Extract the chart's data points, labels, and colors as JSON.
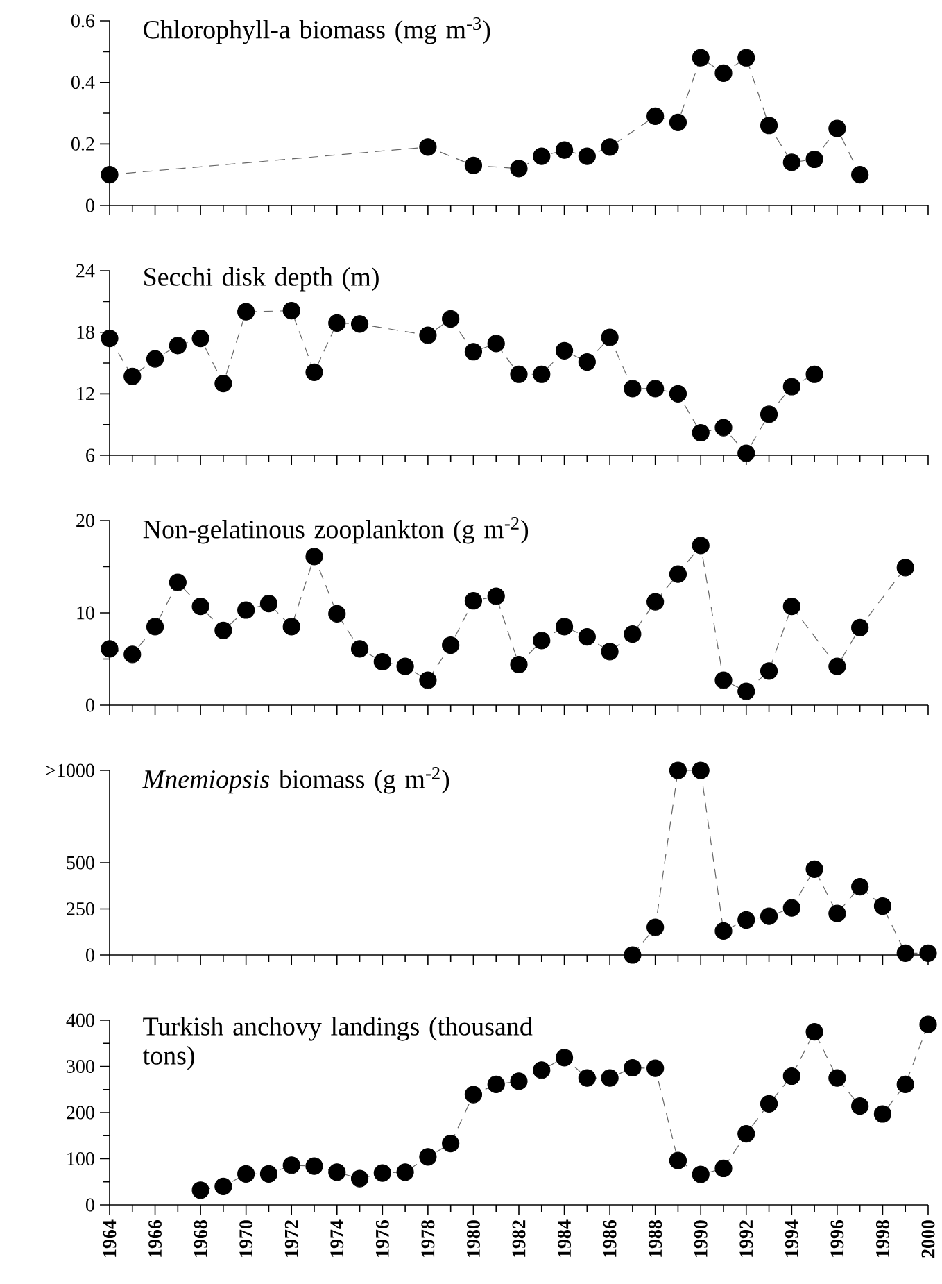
{
  "chart_data": [
    {
      "type": "line",
      "title": "Chlorophyll-a biomass (mg m$^{-3}$)",
      "color": "#000000",
      "marker": "circle",
      "line_style": "dashed",
      "tick_labels": "y",
      "x": [
        1964,
        1978,
        1980,
        1982,
        1983,
        1984,
        1985,
        1986,
        1988,
        1989,
        1990,
        1991,
        1992,
        1993,
        1994,
        1995,
        1996,
        1997
      ],
      "values": [
        0.1,
        0.19,
        0.13,
        0.12,
        0.16,
        0.18,
        0.16,
        0.19,
        0.29,
        0.27,
        0.48,
        0.43,
        0.48,
        0.26,
        0.14,
        0.15,
        0.25,
        0.1
      ],
      "xlim": [
        1964,
        2000
      ],
      "xticks": [
        1964,
        1966,
        1968,
        1970,
        1972,
        1974,
        1976,
        1978,
        1980,
        1982,
        1984,
        1986,
        1988,
        1990,
        1992,
        1994,
        1996,
        1998,
        2000
      ],
      "ylim": [
        0,
        0.6
      ],
      "yticks": [
        0,
        0.2,
        0.4,
        0.6
      ]
    },
    {
      "type": "line",
      "title": "Secchi disk depth (m)",
      "color": "#000000",
      "marker": "circle",
      "line_style": "dashed",
      "tick_labels": "y",
      "x": [
        1964,
        1965,
        1966,
        1967,
        1968,
        1969,
        1970,
        1972,
        1973,
        1974,
        1975,
        1978,
        1979,
        1980,
        1981,
        1982,
        1983,
        1984,
        1985,
        1986,
        1987,
        1988,
        1989,
        1990,
        1991,
        1992,
        1993,
        1994,
        1995
      ],
      "values": [
        17.4,
        13.7,
        15.4,
        16.7,
        17.4,
        13.0,
        20.0,
        20.1,
        14.1,
        18.9,
        18.8,
        17.7,
        19.3,
        16.1,
        16.9,
        13.9,
        13.9,
        16.2,
        15.1,
        17.5,
        12.5,
        12.5,
        12.0,
        8.2,
        8.7,
        6.2,
        10.0,
        12.7,
        13.9
      ],
      "xlim": [
        1964,
        2000
      ],
      "xticks": [
        1964,
        1966,
        1968,
        1970,
        1972,
        1974,
        1976,
        1978,
        1980,
        1982,
        1984,
        1986,
        1988,
        1990,
        1992,
        1994,
        1996,
        1998,
        2000
      ],
      "ylim": [
        6,
        24
      ],
      "yticks": [
        6,
        12,
        18,
        24
      ]
    },
    {
      "type": "line",
      "title": "Non-gelatinous zooplankton (g m$^{-2}$)",
      "color": "#000000",
      "marker": "circle",
      "line_style": "dashed",
      "tick_labels": "y",
      "x": [
        1964,
        1965,
        1966,
        1967,
        1968,
        1969,
        1970,
        1971,
        1972,
        1973,
        1974,
        1975,
        1976,
        1977,
        1978,
        1979,
        1980,
        1981,
        1982,
        1983,
        1984,
        1985,
        1986,
        1987,
        1988,
        1989,
        1990,
        1991,
        1992,
        1993,
        1994,
        1996,
        1997,
        1999
      ],
      "values": [
        6.1,
        5.5,
        8.5,
        13.3,
        10.7,
        8.1,
        10.3,
        11.0,
        8.5,
        16.1,
        9.9,
        6.1,
        4.7,
        4.2,
        2.7,
        6.5,
        11.3,
        11.8,
        4.4,
        7.0,
        8.5,
        7.4,
        5.8,
        7.7,
        11.2,
        14.2,
        17.3,
        2.7,
        1.5,
        3.7,
        10.7,
        4.2,
        8.4,
        14.9
      ],
      "xlim": [
        1964,
        2000
      ],
      "xticks": [
        1964,
        1966,
        1968,
        1970,
        1972,
        1974,
        1976,
        1978,
        1980,
        1982,
        1984,
        1986,
        1988,
        1990,
        1992,
        1994,
        1996,
        1998,
        2000
      ],
      "ylim": [
        0,
        20
      ],
      "yticks": [
        0,
        10,
        20
      ]
    },
    {
      "type": "line",
      "title": "*Mnemiopsis* biomass (g m$^{-2}$)",
      "color": "#000000",
      "marker": "circle",
      "line_style": "dashed",
      "tick_labels": "y",
      "x": [
        1987,
        1988,
        1989,
        1990,
        1991,
        1992,
        1993,
        1994,
        1995,
        1996,
        1997,
        1998,
        1999,
        2000
      ],
      "values": [
        0,
        150,
        1000,
        1000,
        130,
        190,
        210,
        255,
        465,
        225,
        370,
        265,
        10,
        10
      ],
      "xlim": [
        1964,
        2000
      ],
      "xticks": [
        1964,
        1966,
        1968,
        1970,
        1972,
        1974,
        1976,
        1978,
        1980,
        1982,
        1984,
        1986,
        1988,
        1990,
        1992,
        1994,
        1996,
        1998,
        2000
      ],
      "ylim": [
        0,
        1000
      ],
      "yticks": [
        0,
        250,
        500,
        {
          "value": 1000,
          "label": ">1000"
        }
      ]
    },
    {
      "type": "line",
      "title": "Turkish anchovy landings (thousand tons)",
      "color": "#000000",
      "marker": "circle",
      "line_style": "dashed",
      "x": [
        1968,
        1969,
        1970,
        1971,
        1972,
        1973,
        1974,
        1975,
        1976,
        1977,
        1978,
        1979,
        1980,
        1981,
        1982,
        1983,
        1984,
        1985,
        1986,
        1987,
        1988,
        1989,
        1990,
        1991,
        1992,
        1993,
        1994,
        1995,
        1996,
        1997,
        1998,
        1999,
        2000
      ],
      "values": [
        32,
        40,
        67,
        67,
        86,
        84,
        71,
        57,
        69,
        71,
        104,
        133,
        239,
        261,
        268,
        292,
        319,
        275,
        275,
        297,
        296,
        96,
        66,
        79,
        154,
        219,
        279,
        375,
        275,
        214,
        197,
        261,
        391
      ],
      "xlim": [
        1964,
        2000
      ],
      "xticks": [
        1964,
        1966,
        1968,
        1970,
        1972,
        1974,
        1976,
        1978,
        1980,
        1982,
        1984,
        1986,
        1988,
        1990,
        1992,
        1994,
        1996,
        1998,
        2000
      ],
      "ylim": [
        0,
        400
      ],
      "yticks": [
        0,
        100,
        200,
        300,
        400
      ]
    }
  ]
}
